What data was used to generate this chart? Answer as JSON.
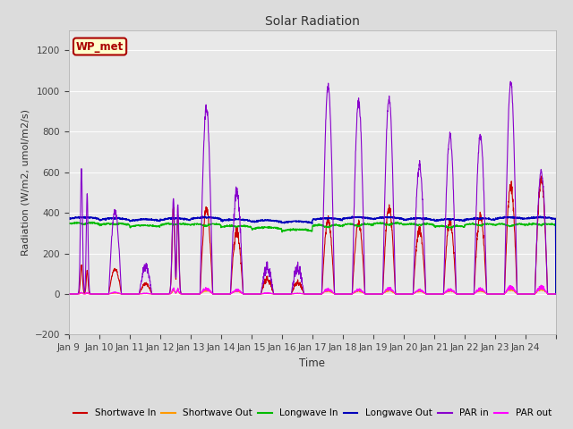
{
  "title": "Solar Radiation",
  "xlabel": "Time",
  "ylabel": "Radiation (W/m2, umol/m2/s)",
  "ylim": [
    -200,
    1300
  ],
  "yticks": [
    -200,
    0,
    200,
    400,
    600,
    800,
    1000,
    1200
  ],
  "fig_bg": "#dcdcdc",
  "plot_bg": "#e8e8e8",
  "legend_label": "WP_met",
  "legend_box_facecolor": "#ffffcc",
  "legend_box_edgecolor": "#aa0000",
  "series": {
    "shortwave_in": {
      "color": "#cc0000",
      "lw": 0.8,
      "label": "Shortwave In"
    },
    "shortwave_out": {
      "color": "#ff9900",
      "lw": 0.8,
      "label": "Shortwave Out"
    },
    "longwave_in": {
      "color": "#00bb00",
      "lw": 0.9,
      "label": "Longwave In"
    },
    "longwave_out": {
      "color": "#0000bb",
      "lw": 1.0,
      "label": "Longwave Out"
    },
    "par_in": {
      "color": "#8800cc",
      "lw": 0.8,
      "label": "PAR in"
    },
    "par_out": {
      "color": "#ff00ff",
      "lw": 0.8,
      "label": "PAR out"
    }
  },
  "xticklabels": [
    "Jan 9",
    "Jan 10",
    "Jan 11",
    "Jan 12",
    "Jan 13",
    "Jan 14",
    "Jan 15",
    "Jan 16",
    "Jan 17",
    "Jan 18",
    "Jan 19",
    "Jan 20",
    "Jan 21",
    "Jan 22",
    "Jan 23",
    "Jan 24"
  ],
  "n_days": 16,
  "pts_per_day": 144
}
